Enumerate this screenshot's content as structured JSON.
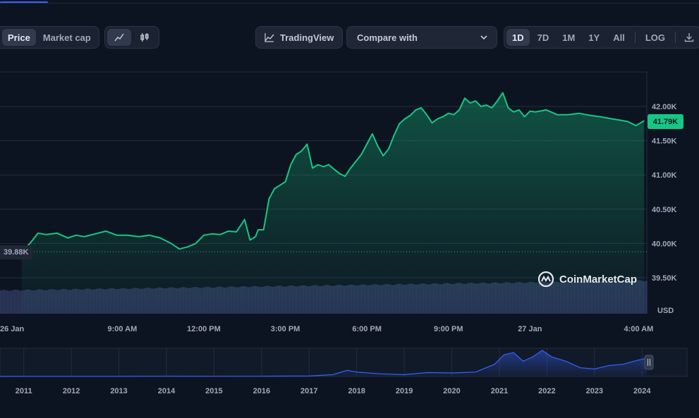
{
  "toolbar": {
    "metric_tabs": [
      {
        "label": "Price",
        "active": true
      },
      {
        "label": "Market cap",
        "active": false
      }
    ],
    "chart_type_icons": [
      "line-chart-icon",
      "candlestick-icon"
    ],
    "tradingview_label": "TradingView",
    "compare_label": "Compare with",
    "ranges": [
      {
        "label": "1D",
        "active": true
      },
      {
        "label": "7D"
      },
      {
        "label": "1M"
      },
      {
        "label": "1Y"
      },
      {
        "label": "All"
      }
    ],
    "log_label": "LOG",
    "download_icon": "download-icon"
  },
  "price_tag": "41.79K",
  "open_tag": "39.88K",
  "currency": "USD",
  "watermark": "CoinMarketCap",
  "colors": {
    "line": "#16c784",
    "volume": "#2f3b61",
    "navigator": "#3861fb",
    "accent": "#3861fb"
  },
  "chart_data": [
    {
      "type": "area",
      "title": "",
      "xlabel": "",
      "ylabel": "",
      "ylim": [
        39.0,
        42.5
      ],
      "y_ticks": [
        39.5,
        40.0,
        40.5,
        41.0,
        41.5,
        42.0
      ],
      "y_tick_labels": [
        "39.50K",
        "40.00K",
        "40.50K",
        "41.00K",
        "41.50K",
        "42.00K"
      ],
      "x_tick_labels": [
        "26 Jan",
        "9:00 AM",
        "12:00 PM",
        "3:00 PM",
        "6:00 PM",
        "9:00 PM",
        "27 Jan",
        "4:00 AM"
      ],
      "xlim_hours": [
        4.5,
        28.3
      ],
      "x_ticks_hours": [
        5,
        9,
        12,
        15,
        18,
        21,
        24,
        28
      ],
      "open_reference": 39.88,
      "last_value": 41.79,
      "series": [
        {
          "points_hours": [
            5.3,
            5.6,
            5.9,
            6.2,
            6.6,
            7.0,
            7.3,
            7.6,
            8.0,
            8.4,
            8.8,
            9.2,
            9.6,
            10.0,
            10.4,
            10.8,
            11.1,
            11.4,
            11.7,
            12.0,
            12.3,
            12.6,
            12.9,
            13.2,
            13.5,
            13.7,
            13.9,
            14.0,
            14.2,
            14.4,
            14.6,
            14.8,
            15.0,
            15.2,
            15.4,
            15.6,
            15.8,
            16.0,
            16.2,
            16.4,
            16.6,
            16.8,
            17.0,
            17.2,
            17.4,
            17.6,
            17.8,
            18.0,
            18.2,
            18.4,
            18.6,
            18.8,
            19.0,
            19.2,
            19.4,
            19.6,
            19.8,
            20.0,
            20.2,
            20.4,
            20.6,
            20.8,
            21.0,
            21.2,
            21.4,
            21.6,
            21.8,
            22.0,
            22.2,
            22.4,
            22.6,
            22.8,
            23.0,
            23.2,
            23.4,
            23.6,
            23.8,
            24.0,
            24.2,
            24.6,
            25.0,
            25.4,
            25.8,
            26.2,
            26.6,
            27.0,
            27.3,
            27.6,
            27.9,
            28.2
          ],
          "values": [
            39.88,
            40.0,
            40.15,
            40.13,
            40.15,
            40.08,
            40.12,
            40.1,
            40.14,
            40.18,
            40.12,
            40.12,
            40.1,
            40.12,
            40.08,
            40.0,
            39.92,
            39.95,
            40.0,
            40.12,
            40.14,
            40.13,
            40.18,
            40.17,
            40.35,
            40.05,
            40.1,
            40.2,
            40.2,
            40.65,
            40.8,
            40.85,
            40.9,
            41.15,
            41.3,
            41.35,
            41.45,
            41.1,
            41.15,
            41.12,
            41.15,
            41.08,
            41.02,
            40.98,
            41.1,
            41.2,
            41.3,
            41.45,
            41.6,
            41.42,
            41.28,
            41.38,
            41.58,
            41.75,
            41.82,
            41.87,
            41.95,
            41.98,
            41.88,
            41.76,
            41.82,
            41.85,
            41.9,
            41.88,
            41.95,
            42.12,
            42.05,
            42.08,
            42.0,
            42.02,
            41.98,
            42.08,
            42.2,
            41.98,
            41.92,
            41.95,
            41.85,
            41.93,
            41.92,
            41.95,
            41.88,
            41.88,
            41.9,
            41.87,
            41.85,
            41.82,
            41.8,
            41.78,
            41.72,
            41.79
          ]
        }
      ]
    },
    {
      "type": "area",
      "title": "navigator",
      "x_tick_labels": [
        "2011",
        "2012",
        "2013",
        "2014",
        "2015",
        "2016",
        "2017",
        "2018",
        "2019",
        "2020",
        "2021",
        "2022",
        "2023",
        "2024"
      ],
      "x_years": [
        2010.5,
        2011,
        2012,
        2013,
        2014,
        2015,
        2016,
        2017,
        2017.5,
        2017.8,
        2018,
        2018.5,
        2019,
        2019.5,
        2020,
        2020.5,
        2020.9,
        2021.1,
        2021.3,
        2021.5,
        2021.7,
        2021.9,
        2022.1,
        2022.4,
        2022.7,
        2023,
        2023.3,
        2023.6,
        2023.9,
        2024.1
      ],
      "values": [
        0,
        0.1,
        0.1,
        0.2,
        0.5,
        0.3,
        0.5,
        1,
        4,
        14,
        10,
        6,
        4,
        9,
        8,
        10,
        28,
        50,
        55,
        35,
        45,
        60,
        45,
        35,
        20,
        17,
        25,
        28,
        37,
        42
      ]
    }
  ]
}
